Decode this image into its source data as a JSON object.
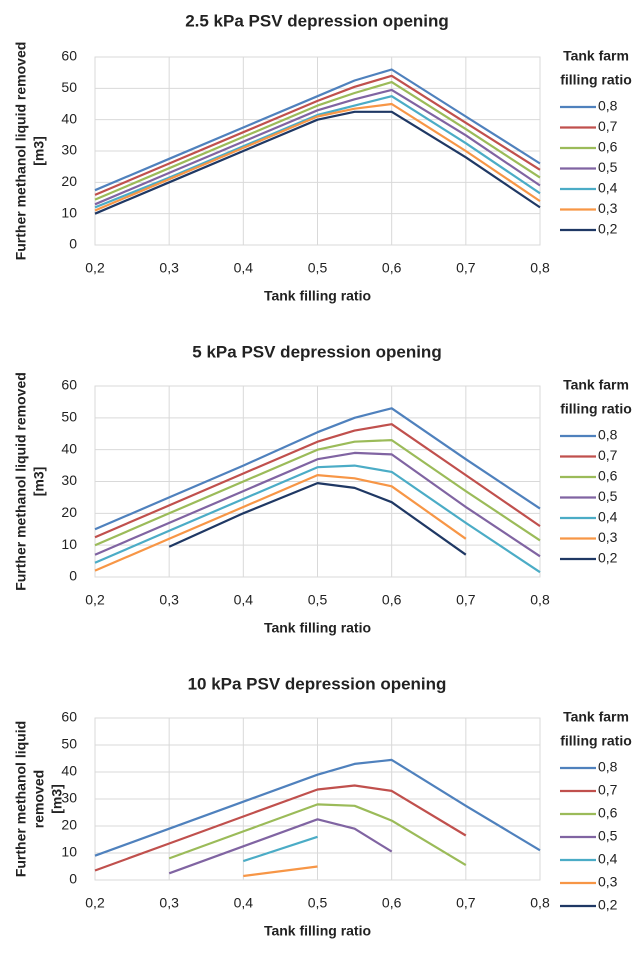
{
  "chart_data": [
    {
      "type": "line",
      "title": "2.5 kPa PSV depression opening",
      "xlabel": "Tank filling ratio",
      "ylabel": [
        "Further methanol liquid removed",
        "[m3]"
      ],
      "legend_title": [
        "Tank farm",
        "filling ratio"
      ],
      "x": [
        0.2,
        0.3,
        0.4,
        0.5,
        0.55,
        0.6,
        0.7,
        0.8
      ],
      "xlim": [
        0.2,
        0.8
      ],
      "ylim": [
        0,
        60
      ],
      "grid": true,
      "xticks": [
        {
          "value": 0.2,
          "label": "0,2"
        },
        {
          "value": 0.3,
          "label": "0,3"
        },
        {
          "value": 0.4,
          "label": "0,4"
        },
        {
          "value": 0.5,
          "label": "0,5"
        },
        {
          "value": 0.6,
          "label": "0,6"
        },
        {
          "value": 0.7,
          "label": "0,7"
        },
        {
          "value": 0.8,
          "label": "0,8"
        }
      ],
      "yticks": [
        0,
        10,
        20,
        30,
        40,
        50,
        60
      ],
      "series": [
        {
          "name": "0,8",
          "color": "#4f81bd",
          "values": [
            17.5,
            27.5,
            37.5,
            47.5,
            52.5,
            56,
            41,
            26
          ]
        },
        {
          "name": "0,7",
          "color": "#c0504d",
          "values": [
            16,
            26,
            36,
            46,
            50.5,
            54,
            39,
            24
          ]
        },
        {
          "name": "0,6",
          "color": "#9bbb59",
          "values": [
            14.5,
            24.5,
            34.5,
            44.5,
            48.5,
            52,
            37,
            21.5
          ]
        },
        {
          "name": "0,5",
          "color": "#8064a2",
          "values": [
            13,
            23,
            33,
            43,
            46.5,
            49.5,
            35,
            19
          ]
        },
        {
          "name": "0,4",
          "color": "#4bacc6",
          "values": [
            12,
            21.5,
            31.5,
            41.5,
            44.5,
            47.5,
            32.5,
            16.5
          ]
        },
        {
          "name": "0,3",
          "color": "#f79646",
          "values": [
            11,
            21,
            31,
            41,
            43.5,
            45,
            30,
            14
          ]
        },
        {
          "name": "0,2",
          "color": "#1f3864",
          "values": [
            10,
            20,
            30,
            40,
            42.5,
            42.5,
            28,
            12
          ]
        }
      ]
    },
    {
      "type": "line",
      "title": "5 kPa PSV depression opening",
      "xlabel": "Tank filling ratio",
      "ylabel": [
        "Further methanol liquid removed",
        "[m3]"
      ],
      "legend_title": [
        "Tank farm",
        "filling ratio"
      ],
      "x": [
        0.2,
        0.3,
        0.4,
        0.5,
        0.55,
        0.6,
        0.7,
        0.8
      ],
      "xlim": [
        0.2,
        0.8
      ],
      "ylim": [
        0,
        60
      ],
      "grid": true,
      "xticks": [
        {
          "value": 0.2,
          "label": "0,2"
        },
        {
          "value": 0.3,
          "label": "0,3"
        },
        {
          "value": 0.4,
          "label": "0,4"
        },
        {
          "value": 0.5,
          "label": "0,5"
        },
        {
          "value": 0.6,
          "label": "0,6"
        },
        {
          "value": 0.7,
          "label": "0,7"
        },
        {
          "value": 0.8,
          "label": "0,8"
        }
      ],
      "yticks": [
        0,
        10,
        20,
        30,
        40,
        50,
        60
      ],
      "series": [
        {
          "name": "0,8",
          "color": "#4f81bd",
          "values": [
            15,
            25,
            35,
            45.5,
            50,
            53,
            37,
            21.5
          ]
        },
        {
          "name": "0,7",
          "color": "#c0504d",
          "values": [
            12.5,
            22.5,
            32.5,
            42.5,
            46,
            48,
            32,
            16
          ]
        },
        {
          "name": "0,6",
          "color": "#9bbb59",
          "values": [
            10,
            20,
            30,
            40,
            42.5,
            43,
            27,
            11.5
          ]
        },
        {
          "name": "0,5",
          "color": "#8064a2",
          "values": [
            7,
            17,
            27,
            37,
            39,
            38.5,
            22,
            6.5
          ]
        },
        {
          "name": "0,4",
          "color": "#4bacc6",
          "values": [
            4.5,
            14.5,
            24.5,
            34.5,
            35,
            33,
            17,
            1.5
          ]
        },
        {
          "name": "0,3",
          "color": "#f79646",
          "values": [
            2,
            12,
            22,
            32,
            31,
            28.5,
            12,
            null
          ]
        },
        {
          "name": "0,2",
          "color": "#1f3864",
          "values": [
            null,
            9.5,
            20,
            29.5,
            28,
            23.5,
            7,
            null
          ]
        }
      ]
    },
    {
      "type": "line",
      "title": "10 kPa PSV depression opening",
      "xlabel": "Tank filling ratio",
      "ylabel": [
        "Further methanol liquid",
        "removed",
        "[m3]"
      ],
      "legend_title": [
        "Tank farm",
        "filling ratio"
      ],
      "x": [
        0.2,
        0.3,
        0.4,
        0.5,
        0.55,
        0.6,
        0.7,
        0.8
      ],
      "xlim": [
        0.2,
        0.8
      ],
      "ylim": [
        0,
        60
      ],
      "grid": true,
      "xticks": [
        {
          "value": 0.2,
          "label": "0,2"
        },
        {
          "value": 0.3,
          "label": "0,3"
        },
        {
          "value": 0.4,
          "label": "0,4"
        },
        {
          "value": 0.5,
          "label": "0,5"
        },
        {
          "value": 0.6,
          "label": "0,6"
        },
        {
          "value": 0.7,
          "label": "0,7"
        },
        {
          "value": 0.8,
          "label": "0,8"
        }
      ],
      "yticks": [
        0,
        10,
        20,
        30,
        40,
        50,
        60
      ],
      "series": [
        {
          "name": "0,8",
          "color": "#4f81bd",
          "values": [
            9,
            19,
            29,
            39,
            43,
            44.5,
            27.5,
            11
          ]
        },
        {
          "name": "0,7",
          "color": "#c0504d",
          "values": [
            3.5,
            13.5,
            23.5,
            33.5,
            35,
            33,
            16.5,
            null
          ]
        },
        {
          "name": "0,6",
          "color": "#9bbb59",
          "values": [
            null,
            8,
            18,
            28,
            27.5,
            22,
            5.5,
            null
          ]
        },
        {
          "name": "0,5",
          "color": "#8064a2",
          "values": [
            null,
            2.5,
            12.5,
            22.5,
            19,
            10.5,
            null,
            null
          ]
        },
        {
          "name": "0,4",
          "color": "#4bacc6",
          "values": [
            null,
            null,
            7,
            16,
            null,
            null,
            null,
            null
          ]
        },
        {
          "name": "0,3",
          "color": "#f79646",
          "values": [
            null,
            null,
            1.5,
            5,
            null,
            null,
            null,
            null
          ]
        },
        {
          "name": "0,2",
          "color": "#1f3864",
          "values": [
            null,
            null,
            null,
            null,
            null,
            null,
            null,
            null
          ]
        }
      ]
    }
  ]
}
